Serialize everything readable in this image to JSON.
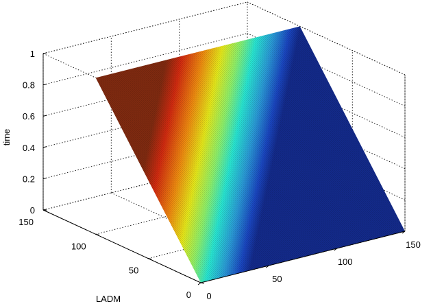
{
  "chart_data": {
    "type": "surface",
    "title": "",
    "xlabel": "",
    "ylabel": "LADM",
    "zlabel": "time",
    "x_ticks": [
      "0",
      "50",
      "100",
      "150"
    ],
    "y_ticks": [
      "0",
      "50",
      "100",
      "150"
    ],
    "z_ticks": [
      "0",
      "0.2",
      "0.4",
      "0.6",
      "0.8",
      "1"
    ],
    "xlim": [
      0,
      150
    ],
    "ylim": [
      0,
      150
    ],
    "zlim": [
      0,
      1
    ],
    "grid": true,
    "colormap": "jet",
    "surface": {
      "description_free": true,
      "x_range": [
        0,
        150
      ],
      "y_range": [
        0,
        100
      ],
      "z_at_y0": 0,
      "z_at_y100": 1
    }
  }
}
